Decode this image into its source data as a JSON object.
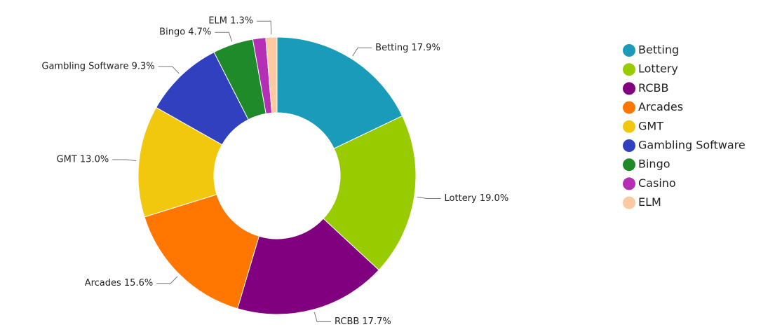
{
  "chart_data": {
    "type": "donut",
    "categories": [
      "Betting",
      "Lottery",
      "RCBB",
      "Arcades",
      "GMT",
      "Gambling Software",
      "Bingo",
      "Casino",
      "ELM"
    ],
    "values": [
      17.9,
      19.0,
      17.7,
      15.6,
      13.0,
      9.3,
      4.7,
      1.5,
      1.3
    ],
    "value_labels": [
      "Betting 17.9%",
      "Lottery 19.0%",
      "RCBB 17.7%",
      "Arcades 15.6%",
      "GMT 13.0%",
      "Gambling Software 9.3%",
      "Bingo 4.7%",
      null,
      "ELM 1.3%"
    ],
    "colors": [
      "#1a9bba",
      "#99cc00",
      "#800080",
      "#ff7700",
      "#f2c80f",
      "#3040bf",
      "#1f8a2a",
      "#b52fb5",
      "#fdc9a0"
    ],
    "legend": "right"
  }
}
